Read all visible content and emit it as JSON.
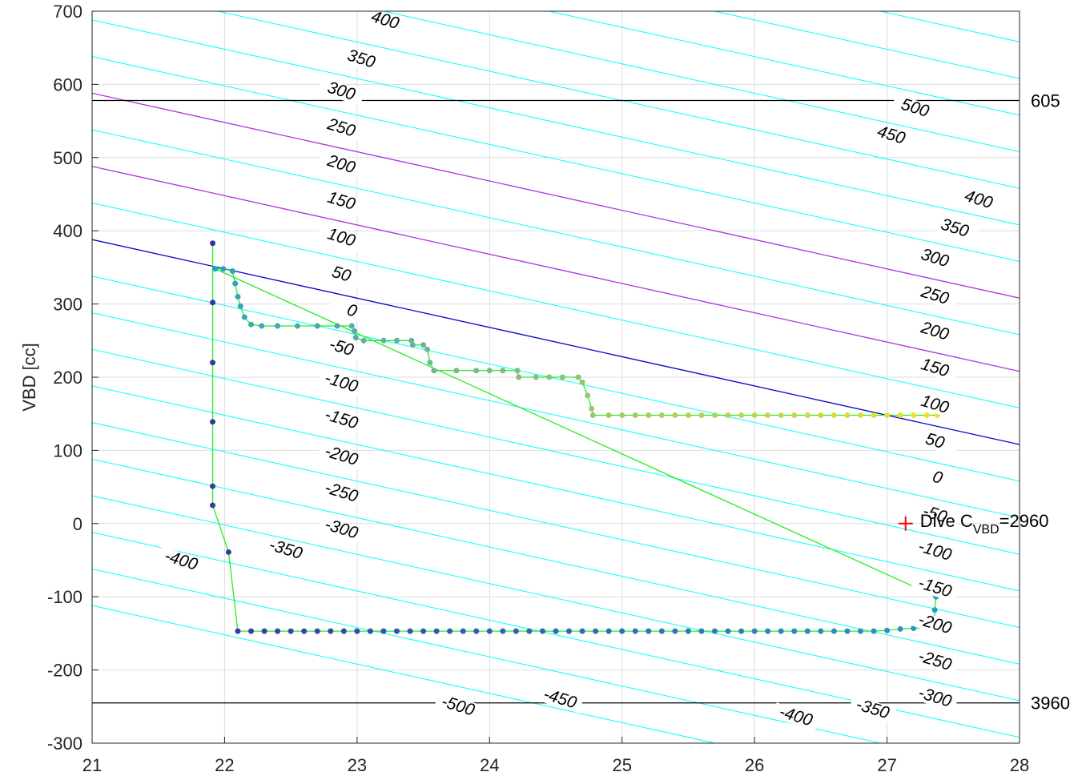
{
  "chart_data": {
    "type": "scatter",
    "title": "",
    "xlabel": "",
    "ylabel": "VBD [cc]",
    "xlim": [
      21,
      28
    ],
    "ylim": [
      -300,
      700
    ],
    "x_ticks": [
      "21",
      "22",
      "23",
      "24",
      "25",
      "26",
      "27",
      "28"
    ],
    "y_ticks": [
      "-300",
      "-200",
      "-100",
      "0",
      "100",
      "200",
      "300",
      "400",
      "500",
      "600",
      "700"
    ],
    "grid": true,
    "contours": {
      "color": "#00ffff",
      "slope": -40,
      "levels": [
        -500,
        -450,
        -400,
        -350,
        -300,
        -250,
        -200,
        -150,
        -100,
        -50,
        0,
        50,
        100,
        150,
        200,
        250,
        300,
        350,
        400,
        450,
        500,
        550,
        600,
        650,
        700,
        750,
        800,
        850,
        900,
        950
      ],
      "zero_line_color": "#0000cd",
      "highlight_color": "#b030e0",
      "highlight_levels": [
        100,
        200
      ]
    },
    "contour_labels": [
      {
        "text": "400",
        "x": 23.2,
        "y": 681
      },
      {
        "text": "350",
        "x": 23.02,
        "y": 628
      },
      {
        "text": "300",
        "x": 22.87,
        "y": 584
      },
      {
        "text": "250",
        "x": 22.87,
        "y": 534
      },
      {
        "text": "200",
        "x": 22.87,
        "y": 484
      },
      {
        "text": "150",
        "x": 22.87,
        "y": 434
      },
      {
        "text": "100",
        "x": 22.87,
        "y": 384
      },
      {
        "text": "50",
        "x": 22.87,
        "y": 334
      },
      {
        "text": "0",
        "x": 22.95,
        "y": 284
      },
      {
        "text": "-50",
        "x": 22.87,
        "y": 234
      },
      {
        "text": "-100",
        "x": 22.87,
        "y": 186
      },
      {
        "text": "-150",
        "x": 22.87,
        "y": 136
      },
      {
        "text": "-200",
        "x": 22.87,
        "y": 86
      },
      {
        "text": "-250",
        "x": 22.87,
        "y": 36
      },
      {
        "text": "-300",
        "x": 22.87,
        "y": -14
      },
      {
        "text": "-350",
        "x": 22.45,
        "y": -42
      },
      {
        "text": "-400",
        "x": 21.66,
        "y": -57
      },
      {
        "text": "-500",
        "x": 23.75,
        "y": -256
      },
      {
        "text": "-450",
        "x": 24.52,
        "y": -246
      },
      {
        "text": "-400",
        "x": 26.3,
        "y": -270
      },
      {
        "text": "-350",
        "x": 26.88,
        "y": -260
      },
      {
        "text": "500",
        "x": 27.2,
        "y": 561
      },
      {
        "text": "450",
        "x": 27.02,
        "y": 524
      },
      {
        "text": "400",
        "x": 27.68,
        "y": 436
      },
      {
        "text": "350",
        "x": 27.5,
        "y": 397
      },
      {
        "text": "300",
        "x": 27.35,
        "y": 356
      },
      {
        "text": "250",
        "x": 27.35,
        "y": 305
      },
      {
        "text": "200",
        "x": 27.35,
        "y": 256
      },
      {
        "text": "150",
        "x": 27.35,
        "y": 206
      },
      {
        "text": "100",
        "x": 27.35,
        "y": 156
      },
      {
        "text": "50",
        "x": 27.35,
        "y": 106
      },
      {
        "text": "0",
        "x": 27.37,
        "y": 56
      },
      {
        "text": "-50",
        "x": 27.35,
        "y": 6
      },
      {
        "text": "-100",
        "x": 27.35,
        "y": -44
      },
      {
        "text": "-150",
        "x": 27.35,
        "y": -94
      },
      {
        "text": "-200",
        "x": 27.35,
        "y": -144
      },
      {
        "text": "-250",
        "x": 27.35,
        "y": -194
      },
      {
        "text": "-300",
        "x": 27.35,
        "y": -244
      }
    ],
    "reference_lines": [
      {
        "y": 578,
        "label": "605",
        "color": "#000000"
      },
      {
        "y": -245,
        "label": "3960",
        "color": "#000000"
      }
    ],
    "trajectory": {
      "line_color": "#22ee22",
      "color_start": "#3a30a0",
      "color_end": "#f5e02a",
      "descent": [
        [
          21.91,
          383
        ],
        [
          21.91,
          302
        ],
        [
          21.91,
          220
        ],
        [
          21.91,
          139
        ],
        [
          21.91,
          51
        ],
        [
          21.91,
          25
        ],
        [
          22.03,
          -39
        ],
        [
          22.1,
          -147
        ],
        [
          22.2,
          -147
        ],
        [
          22.3,
          -147
        ],
        [
          22.4,
          -147
        ],
        [
          22.5,
          -147
        ],
        [
          22.6,
          -147
        ],
        [
          22.7,
          -147
        ],
        [
          22.8,
          -147
        ],
        [
          22.9,
          -147
        ],
        [
          23.0,
          -147
        ],
        [
          23.1,
          -147
        ],
        [
          23.2,
          -147
        ],
        [
          23.3,
          -147
        ],
        [
          23.4,
          -147
        ],
        [
          23.5,
          -147
        ],
        [
          23.6,
          -147
        ],
        [
          23.7,
          -147
        ],
        [
          23.8,
          -147
        ],
        [
          23.9,
          -147
        ],
        [
          24.0,
          -147
        ],
        [
          24.1,
          -147
        ],
        [
          24.2,
          -147
        ],
        [
          24.3,
          -147
        ],
        [
          24.4,
          -147
        ],
        [
          24.5,
          -147
        ],
        [
          24.6,
          -147
        ],
        [
          24.7,
          -147
        ],
        [
          24.8,
          -147
        ],
        [
          24.9,
          -147
        ],
        [
          25.0,
          -147
        ],
        [
          25.1,
          -147
        ],
        [
          25.2,
          -147
        ],
        [
          25.3,
          -147
        ],
        [
          25.4,
          -147
        ],
        [
          25.5,
          -147
        ],
        [
          25.6,
          -147
        ],
        [
          25.7,
          -147
        ],
        [
          25.8,
          -147
        ],
        [
          25.9,
          -147
        ],
        [
          26.0,
          -147
        ],
        [
          26.1,
          -147
        ],
        [
          26.2,
          -147
        ],
        [
          26.3,
          -147
        ],
        [
          26.4,
          -147
        ],
        [
          26.5,
          -147
        ],
        [
          26.6,
          -147
        ],
        [
          26.7,
          -147
        ],
        [
          26.8,
          -147
        ],
        [
          26.9,
          -147
        ],
        [
          27.0,
          -146
        ],
        [
          27.1,
          -144
        ],
        [
          27.2,
          -143
        ],
        [
          27.3,
          -142
        ],
        [
          27.36,
          -140
        ],
        [
          27.36,
          -118
        ],
        [
          27.37,
          -100
        ]
      ],
      "ascent": [
        [
          27.38,
          148
        ],
        [
          27.3,
          148
        ],
        [
          27.2,
          148
        ],
        [
          27.1,
          148
        ],
        [
          27.0,
          148
        ],
        [
          26.9,
          148
        ],
        [
          26.8,
          148
        ],
        [
          26.7,
          148
        ],
        [
          26.6,
          148
        ],
        [
          26.5,
          148
        ],
        [
          26.4,
          148
        ],
        [
          26.3,
          148
        ],
        [
          26.2,
          148
        ],
        [
          26.1,
          148
        ],
        [
          26.0,
          148
        ],
        [
          25.9,
          148
        ],
        [
          25.8,
          148
        ],
        [
          25.7,
          148
        ],
        [
          25.6,
          148
        ],
        [
          25.5,
          148
        ],
        [
          25.4,
          148
        ],
        [
          25.3,
          148
        ],
        [
          25.2,
          148
        ],
        [
          25.1,
          148
        ],
        [
          25.0,
          148
        ],
        [
          24.9,
          148
        ],
        [
          24.78,
          148
        ],
        [
          24.77,
          157
        ],
        [
          24.74,
          175
        ],
        [
          24.7,
          193
        ],
        [
          24.67,
          200
        ],
        [
          24.55,
          200
        ],
        [
          24.45,
          200
        ],
        [
          24.35,
          200
        ],
        [
          24.22,
          200
        ],
        [
          24.21,
          209
        ],
        [
          24.1,
          209
        ],
        [
          24.0,
          209
        ],
        [
          23.9,
          209
        ],
        [
          23.75,
          209
        ],
        [
          23.58,
          209
        ],
        [
          23.55,
          220
        ],
        [
          23.53,
          238
        ],
        [
          23.5,
          244
        ],
        [
          23.42,
          244
        ],
        [
          23.41,
          250
        ],
        [
          23.3,
          250
        ],
        [
          23.2,
          250
        ],
        [
          23.05,
          250
        ],
        [
          22.99,
          254
        ],
        [
          22.98,
          263
        ],
        [
          22.96,
          270
        ],
        [
          22.85,
          270
        ],
        [
          22.7,
          270
        ],
        [
          22.55,
          270
        ],
        [
          22.4,
          270
        ],
        [
          22.28,
          270
        ],
        [
          22.2,
          272
        ],
        [
          22.15,
          282
        ],
        [
          22.12,
          297
        ],
        [
          22.1,
          310
        ],
        [
          22.08,
          328
        ],
        [
          22.06,
          345
        ],
        [
          21.99,
          348
        ],
        [
          21.93,
          348
        ]
      ]
    },
    "dive_marker": {
      "x": 27.14,
      "y": 0,
      "color": "#ff0000",
      "label_main": "Dive C",
      "label_sub": "VBD",
      "label_value": "=2960"
    }
  }
}
